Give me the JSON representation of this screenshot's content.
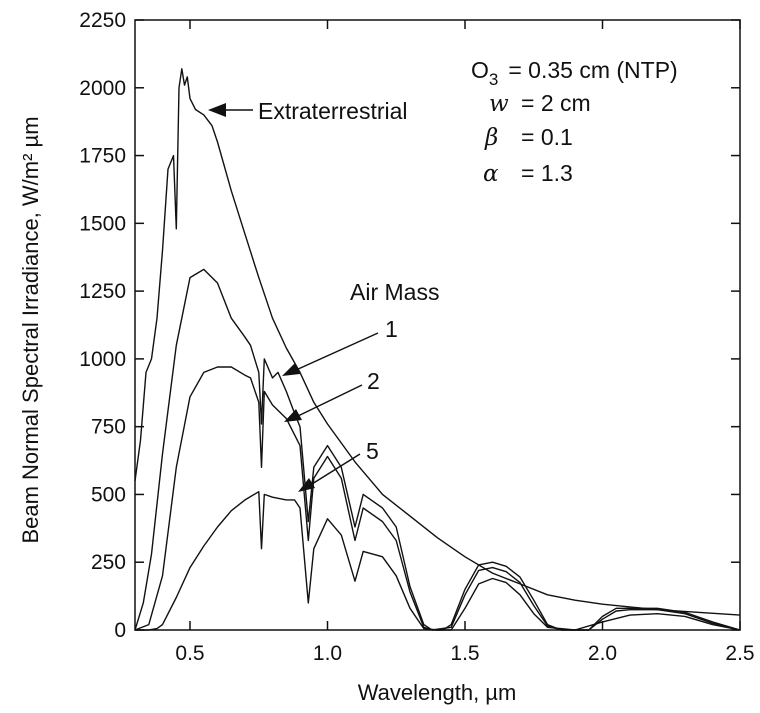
{
  "chart_data": {
    "type": "line",
    "title": "",
    "xlabel": "Wavelength, µm",
    "ylabel": "Beam Normal Spectral Irradiance, W/m² µm",
    "xlim": [
      0.3,
      2.5
    ],
    "ylim": [
      0,
      2250
    ],
    "xticks": [
      "0.5",
      "1.0",
      "1.5",
      "2.0",
      "2.5"
    ],
    "yticks": [
      "0",
      "250",
      "500",
      "750",
      "1000",
      "1250",
      "1500",
      "1750",
      "2000",
      "2250"
    ],
    "grid": false,
    "legend": "none",
    "series": [
      {
        "name": "Extraterrestrial",
        "x": [
          0.3,
          0.32,
          0.34,
          0.36,
          0.38,
          0.4,
          0.42,
          0.44,
          0.45,
          0.46,
          0.47,
          0.48,
          0.49,
          0.5,
          0.52,
          0.55,
          0.58,
          0.6,
          0.65,
          0.7,
          0.75,
          0.8,
          0.85,
          0.9,
          0.95,
          1.0,
          1.1,
          1.2,
          1.3,
          1.4,
          1.5,
          1.6,
          1.7,
          1.8,
          1.9,
          2.0,
          2.2,
          2.5
        ],
        "y": [
          550,
          700,
          950,
          1000,
          1150,
          1400,
          1700,
          1750,
          1480,
          2000,
          2070,
          2010,
          2040,
          1960,
          1920,
          1900,
          1860,
          1800,
          1620,
          1460,
          1300,
          1150,
          1040,
          950,
          840,
          760,
          620,
          500,
          420,
          340,
          270,
          210,
          170,
          130,
          110,
          95,
          75,
          55
        ]
      },
      {
        "name": "1",
        "x": [
          0.3,
          0.33,
          0.36,
          0.4,
          0.45,
          0.5,
          0.55,
          0.6,
          0.65,
          0.7,
          0.72,
          0.75,
          0.76,
          0.77,
          0.8,
          0.82,
          0.85,
          0.88,
          0.9,
          0.93,
          0.95,
          1.0,
          1.05,
          1.1,
          1.13,
          1.2,
          1.25,
          1.3,
          1.35,
          1.38,
          1.42,
          1.45,
          1.5,
          1.55,
          1.6,
          1.65,
          1.7,
          1.75,
          1.8,
          1.85,
          1.9,
          1.95,
          2.0,
          2.05,
          2.1,
          2.2,
          2.3,
          2.4,
          2.5
        ],
        "y": [
          0,
          100,
          280,
          650,
          1050,
          1300,
          1330,
          1280,
          1150,
          1080,
          1050,
          950,
          760,
          1000,
          930,
          950,
          880,
          800,
          750,
          400,
          600,
          680,
          600,
          380,
          500,
          450,
          380,
          160,
          20,
          0,
          0,
          20,
          150,
          240,
          250,
          235,
          195,
          110,
          20,
          0,
          0,
          0,
          50,
          80,
          80,
          80,
          65,
          30,
          0
        ]
      },
      {
        "name": "2",
        "x": [
          0.3,
          0.35,
          0.4,
          0.45,
          0.5,
          0.55,
          0.6,
          0.65,
          0.7,
          0.72,
          0.75,
          0.76,
          0.77,
          0.8,
          0.85,
          0.9,
          0.93,
          0.95,
          1.0,
          1.05,
          1.1,
          1.13,
          1.2,
          1.25,
          1.3,
          1.35,
          1.38,
          1.45,
          1.5,
          1.55,
          1.6,
          1.65,
          1.7,
          1.75,
          1.8,
          1.85,
          1.95,
          2.0,
          2.05,
          2.1,
          2.2,
          2.3,
          2.4,
          2.5
        ],
        "y": [
          0,
          20,
          200,
          600,
          860,
          950,
          970,
          970,
          940,
          930,
          840,
          600,
          880,
          830,
          780,
          680,
          330,
          560,
          640,
          560,
          330,
          450,
          400,
          330,
          140,
          10,
          0,
          10,
          130,
          220,
          230,
          215,
          175,
          90,
          15,
          0,
          0,
          40,
          70,
          75,
          75,
          60,
          25,
          0
        ]
      },
      {
        "name": "5",
        "x": [
          0.3,
          0.35,
          0.38,
          0.4,
          0.45,
          0.5,
          0.55,
          0.6,
          0.65,
          0.7,
          0.75,
          0.76,
          0.77,
          0.8,
          0.85,
          0.88,
          0.9,
          0.93,
          0.95,
          1.0,
          1.05,
          1.1,
          1.13,
          1.2,
          1.25,
          1.3,
          1.35,
          1.4,
          1.45,
          1.5,
          1.55,
          1.6,
          1.65,
          1.7,
          1.75,
          1.8,
          1.9,
          2.0,
          2.1,
          2.2,
          2.3,
          2.4,
          2.5
        ],
        "y": [
          0,
          0,
          5,
          20,
          120,
          230,
          310,
          380,
          440,
          480,
          510,
          300,
          500,
          490,
          480,
          480,
          450,
          100,
          300,
          410,
          350,
          180,
          290,
          270,
          200,
          80,
          5,
          0,
          0,
          80,
          170,
          190,
          175,
          130,
          60,
          10,
          0,
          30,
          55,
          60,
          50,
          20,
          0
        ]
      }
    ],
    "annotations": {
      "extraterrestrial": "Extraterrestrial",
      "air_mass_title": "Air Mass",
      "air_mass_1": "1",
      "air_mass_2": "2",
      "air_mass_5": "5",
      "ozone_sym": "O",
      "ozone_sub": "3",
      "ozone_val": "= 0.35 cm (NTP)",
      "w_sym": "w",
      "w_val": "= 2 cm",
      "beta_sym": "β",
      "beta_val": "= 0.1",
      "alpha_sym": "α",
      "alpha_val": "= 1.3"
    }
  }
}
